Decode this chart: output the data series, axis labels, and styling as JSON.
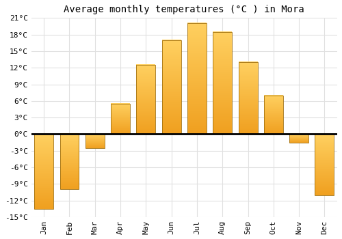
{
  "title": "Average monthly temperatures (°C ) in Mora",
  "months": [
    "Jan",
    "Feb",
    "Mar",
    "Apr",
    "May",
    "Jun",
    "Jul",
    "Aug",
    "Sep",
    "Oct",
    "Nov",
    "Dec"
  ],
  "values": [
    -13.5,
    -10.0,
    -2.5,
    5.5,
    12.5,
    17.0,
    20.0,
    18.5,
    13.0,
    7.0,
    -1.5,
    -11.0
  ],
  "bar_color_bottom": "#F0A020",
  "bar_color_top": "#FFD060",
  "bar_edge_color": "#A07010",
  "background_color": "#FFFFFF",
  "grid_color": "#E0E0E0",
  "ylim": [
    -15,
    21
  ],
  "yticks": [
    -15,
    -12,
    -9,
    -6,
    -3,
    0,
    3,
    6,
    9,
    12,
    15,
    18,
    21
  ],
  "ytick_labels": [
    "-15°C",
    "-12°C",
    "-9°C",
    "-6°C",
    "-3°C",
    "0°C",
    "3°C",
    "6°C",
    "9°C",
    "12°C",
    "15°C",
    "18°C",
    "21°C"
  ],
  "title_fontsize": 10,
  "tick_fontsize": 8
}
